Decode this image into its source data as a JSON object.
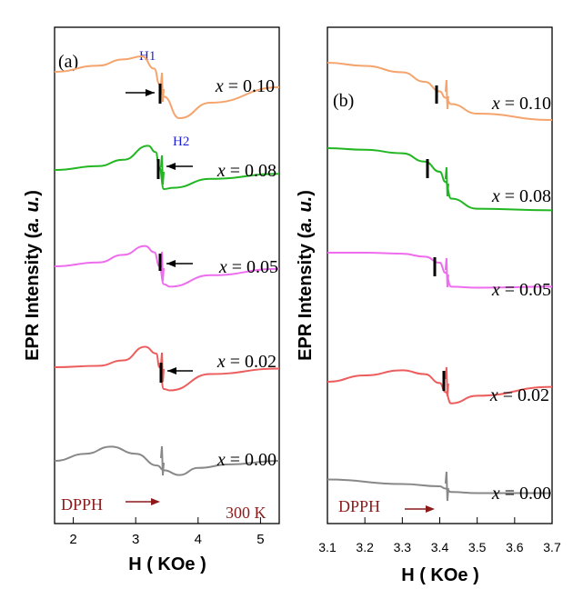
{
  "figure": {
    "ylabel_main": "EPR Intensity (",
    "ylabel_unit": "a. u.",
    "ylabel_close": ")"
  },
  "chart_data": [
    {
      "type": "line",
      "panel_label": "(a)",
      "xlabel": "H ( KOe )",
      "ylabel": "EPR Intensity (a. u.)",
      "xlim": [
        1.7,
        5.3
      ],
      "xticks": [
        2,
        3,
        4,
        5
      ],
      "xtick_labels": [
        "2",
        "3",
        "4",
        "5"
      ],
      "reference_label": "DPPH",
      "temperature_label": "300 K",
      "field_markers": [
        "H1",
        "H2"
      ],
      "series": [
        {
          "name": "x = 0.10",
          "color": "#f4a46c",
          "x": [
            1.7,
            2.4,
            2.8,
            3.1,
            3.3,
            3.38,
            3.45,
            3.7,
            4.2,
            5.3
          ],
          "y": [
            0.5,
            0.7,
            0.9,
            1.0,
            0.6,
            0.1,
            -0.3,
            -1.0,
            -0.5,
            0.0
          ]
        },
        {
          "name": "x = 0.08",
          "color": "#22b622",
          "x": [
            1.7,
            2.4,
            2.8,
            3.2,
            3.32,
            3.38,
            3.45,
            3.6,
            4.2,
            5.3
          ],
          "y": [
            0.0,
            0.15,
            0.4,
            0.95,
            0.7,
            0.1,
            -0.75,
            -0.7,
            -0.35,
            -0.15
          ]
        },
        {
          "name": "x = 0.05",
          "color": "#ee6cee",
          "x": [
            1.7,
            2.4,
            2.8,
            3.15,
            3.3,
            3.38,
            3.45,
            3.55,
            4.2,
            5.3
          ],
          "y": [
            0.0,
            0.15,
            0.45,
            0.8,
            0.55,
            0.0,
            -0.7,
            -0.8,
            -0.35,
            -0.1
          ]
        },
        {
          "name": "x = 0.02",
          "color": "#ec5e5e",
          "x": [
            1.7,
            2.4,
            2.8,
            3.15,
            3.33,
            3.38,
            3.45,
            3.55,
            4.2,
            5.3
          ],
          "y": [
            0.0,
            0.05,
            0.25,
            0.75,
            0.5,
            0.0,
            -0.8,
            -0.85,
            -0.25,
            -0.05
          ]
        },
        {
          "name": "x = 0.00",
          "color": "#888888",
          "x": [
            1.7,
            2.2,
            2.6,
            3.0,
            3.35,
            3.45,
            3.7,
            4.0,
            4.5,
            5.3
          ],
          "y": [
            0.0,
            0.3,
            0.6,
            0.3,
            -0.2,
            -0.4,
            -0.6,
            -0.3,
            -0.15,
            0.0
          ]
        }
      ]
    },
    {
      "type": "line",
      "panel_label": "(b)",
      "xlabel": "H ( KOe )",
      "ylabel": "EPR Intensity (a. u.)",
      "xlim": [
        3.1,
        3.7
      ],
      "xticks": [
        3.1,
        3.2,
        3.3,
        3.4,
        3.5,
        3.6,
        3.7
      ],
      "xtick_labels": [
        "3.1",
        "3.2",
        "3.3",
        "3.4",
        "3.5",
        "3.6",
        "3.7"
      ],
      "reference_label": "DPPH",
      "series": [
        {
          "name": "x = 0.10",
          "color": "#f4a46c",
          "x": [
            3.1,
            3.2,
            3.3,
            3.36,
            3.4,
            3.415,
            3.43,
            3.5,
            3.7
          ],
          "y": [
            1.0,
            0.9,
            0.7,
            0.4,
            0.1,
            -0.1,
            -0.3,
            -0.6,
            -0.8
          ]
        },
        {
          "name": "x = 0.08",
          "color": "#22b622",
          "x": [
            3.1,
            3.2,
            3.3,
            3.36,
            3.4,
            3.415,
            3.43,
            3.5,
            3.7
          ],
          "y": [
            1.0,
            0.95,
            0.85,
            0.6,
            0.3,
            0.0,
            -0.5,
            -0.8,
            -0.85
          ]
        },
        {
          "name": "x = 0.05",
          "color": "#ee6cee",
          "x": [
            3.1,
            3.2,
            3.3,
            3.36,
            3.4,
            3.415,
            3.43,
            3.5,
            3.7
          ],
          "y": [
            1.0,
            1.0,
            0.95,
            0.8,
            0.5,
            0.0,
            -0.7,
            -0.75,
            -0.7
          ]
        },
        {
          "name": "x = 0.02",
          "color": "#ec5e5e",
          "x": [
            3.1,
            3.2,
            3.3,
            3.36,
            3.4,
            3.415,
            3.43,
            3.5,
            3.7
          ],
          "y": [
            0.0,
            0.25,
            0.45,
            0.3,
            -0.05,
            -0.4,
            -0.85,
            -0.55,
            -0.2
          ]
        },
        {
          "name": "x = 0.00",
          "color": "#888888",
          "x": [
            3.1,
            3.3,
            3.4,
            3.415,
            3.43,
            3.5,
            3.7
          ],
          "y": [
            0.3,
            0.1,
            0.0,
            -0.1,
            -0.25,
            -0.3,
            -0.3
          ]
        }
      ]
    }
  ]
}
